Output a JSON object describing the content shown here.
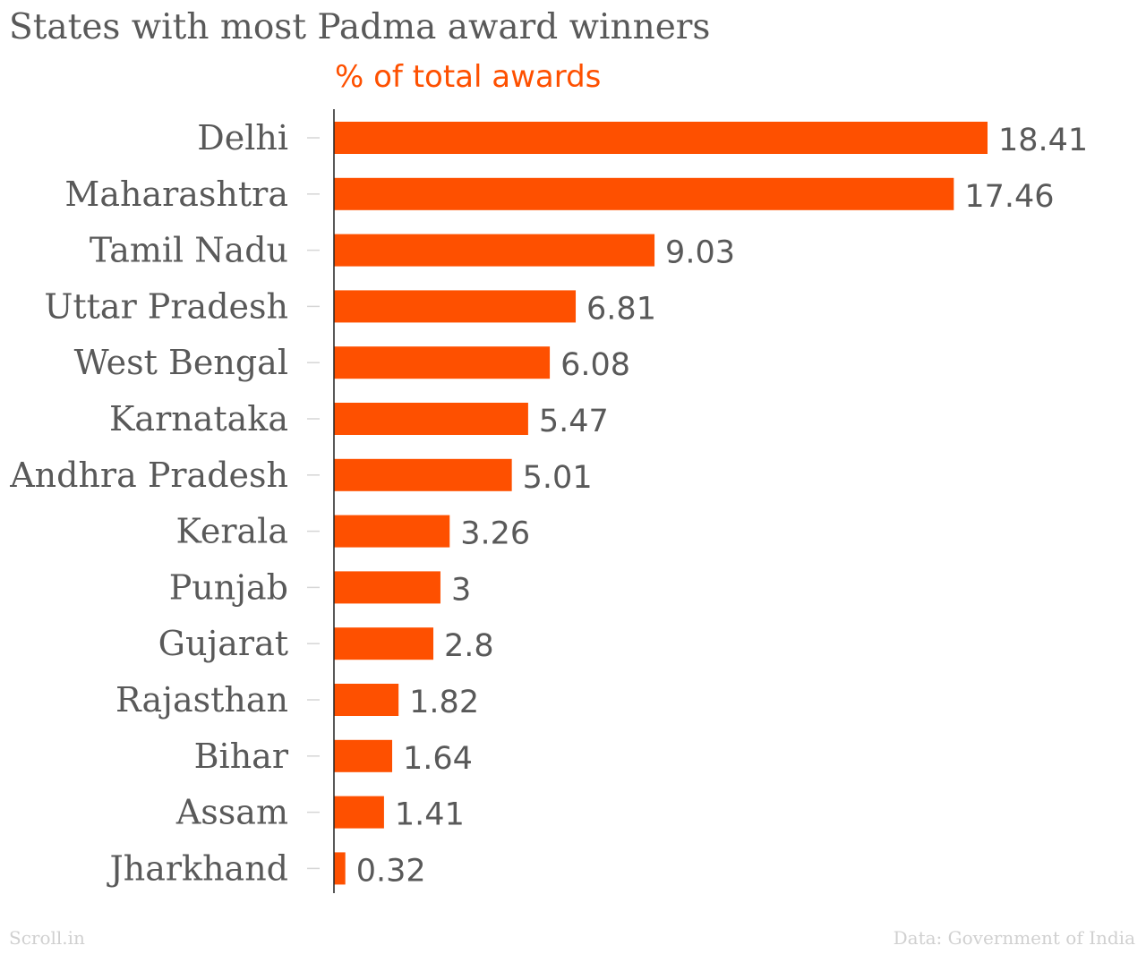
{
  "chart_data": {
    "type": "bar",
    "orientation": "horizontal",
    "title": "States with most Padma award winners",
    "subtitle": "% of total awards",
    "categories": [
      "Delhi",
      "Maharashtra",
      "Tamil Nadu",
      "Uttar Pradesh",
      "West Bengal",
      "Karnataka",
      "Andhra Pradesh",
      "Kerala",
      "Punjab",
      "Gujarat",
      "Rajasthan",
      "Bihar",
      "Assam",
      "Jharkhand"
    ],
    "values": [
      18.41,
      17.46,
      9.03,
      6.81,
      6.08,
      5.47,
      5.01,
      3.26,
      3,
      2.8,
      1.82,
      1.64,
      1.41,
      0.32
    ],
    "value_labels": [
      "18.41",
      "17.46",
      "9.03",
      "6.81",
      "6.08",
      "5.47",
      "5.01",
      "3.26",
      "3",
      "2.8",
      "1.82",
      "1.64",
      "1.41",
      "0.32"
    ],
    "xlim": [
      0,
      18.41
    ],
    "grid": false,
    "bar_color": "#fe5000"
  },
  "footer": {
    "source": "Scroll.in",
    "data_credit": "Data: Government of India"
  },
  "colors": {
    "accent": "#fe5000",
    "text": "#595959",
    "muted": "#d0d0d0"
  }
}
